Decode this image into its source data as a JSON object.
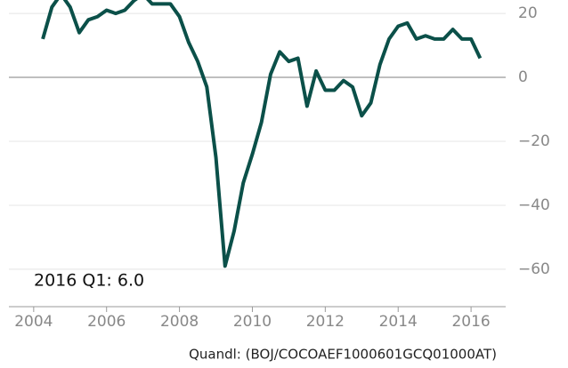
{
  "chart_data": {
    "type": "line",
    "annotation": "2016 Q1: 6.0",
    "source": "Quandl: (BOJ/COCOAEF1000601GCQ01000AT)",
    "x": [
      2004.25,
      2004.5,
      2004.75,
      2005,
      2005.25,
      2005.5,
      2005.75,
      2006,
      2006.25,
      2006.5,
      2006.75,
      2007,
      2007.25,
      2007.5,
      2007.75,
      2008,
      2008.25,
      2008.5,
      2008.75,
      2009,
      2009.25,
      2009.5,
      2009.75,
      2010,
      2010.25,
      2010.5,
      2010.75,
      2011,
      2011.25,
      2011.5,
      2011.75,
      2012,
      2012.25,
      2012.5,
      2012.75,
      2013,
      2013.25,
      2013.5,
      2013.75,
      2014,
      2014.25,
      2014.5,
      2014.75,
      2015,
      2015.25,
      2015.5,
      2015.75,
      2016,
      2016.25
    ],
    "series": [
      {
        "color": "#0b5049",
        "values": [
          12,
          22,
          26,
          22,
          14,
          18,
          19,
          21,
          20,
          21,
          24,
          26,
          23,
          23,
          23,
          19,
          11,
          5,
          -3,
          -25,
          -59,
          -48,
          -33,
          -24,
          -14,
          1,
          8,
          5,
          6,
          -9,
          2,
          -4,
          -4,
          -1,
          -3,
          -12,
          -8,
          4,
          12,
          16,
          17,
          12,
          13,
          12,
          12,
          15,
          12,
          12,
          6
        ]
      }
    ],
    "xlim": [
      2003.32,
      2016.95
    ],
    "xticks": [
      2004,
      2006,
      2008,
      2010,
      2012,
      2014,
      2016
    ],
    "ylim": [
      -71.7,
      24.2
    ],
    "yticks": [
      20,
      0,
      {
        "value": -20,
        "label": "−20"
      },
      {
        "value": -40,
        "label": "−40"
      },
      {
        "value": -60,
        "label": "−60"
      }
    ],
    "grid": true
  }
}
